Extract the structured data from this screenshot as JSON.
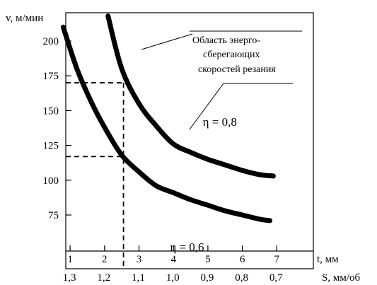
{
  "chart_data": {
    "type": "line",
    "title": "",
    "ylabel": "v, м/мин",
    "xlabel_t": "t, мм",
    "xlabel_s": "S, мм/об",
    "ylim": [
      50,
      225
    ],
    "xlim": [
      0.0,
      7.0
    ],
    "y_ticks": [
      75,
      100,
      125,
      150,
      175,
      200
    ],
    "y_tick_labels": [
      "75",
      "100",
      "125",
      "150",
      "175",
      "200"
    ],
    "t_ticks": [
      1,
      2,
      3,
      4,
      5,
      6,
      7
    ],
    "t_tick_labels": [
      "1",
      "2",
      "3",
      "4",
      "5",
      "6",
      "7"
    ],
    "s_tick_labels": [
      "1,3",
      "1,2",
      "1,1",
      "1,0",
      "0,9",
      "0,8",
      "0,7"
    ],
    "grid": false,
    "series": [
      {
        "name": "η = 0,8",
        "x": [
          2.1,
          2.5,
          3.0,
          3.5,
          4.0,
          4.5,
          5.0,
          5.5,
          6.0,
          6.5,
          6.9
        ],
        "y": [
          218,
          180,
          155,
          139,
          126,
          120,
          115,
          111,
          107,
          104,
          103
        ]
      },
      {
        "name": "η = 0,6",
        "x": [
          0.8,
          1.2,
          1.6,
          2.0,
          2.5,
          3.0,
          3.5,
          4.0,
          4.5,
          5.0,
          5.5,
          6.0,
          6.5,
          6.8
        ],
        "y": [
          210,
          180,
          157,
          138,
          118,
          106,
          96,
          91,
          86,
          82,
          78,
          75,
          72,
          71
        ]
      }
    ],
    "annotation": "Область энерго-\nсберегающих\nскоростей резания",
    "reference_lines": {
      "t": 2.55,
      "v_upper": 170,
      "v_lower": 117
    }
  }
}
